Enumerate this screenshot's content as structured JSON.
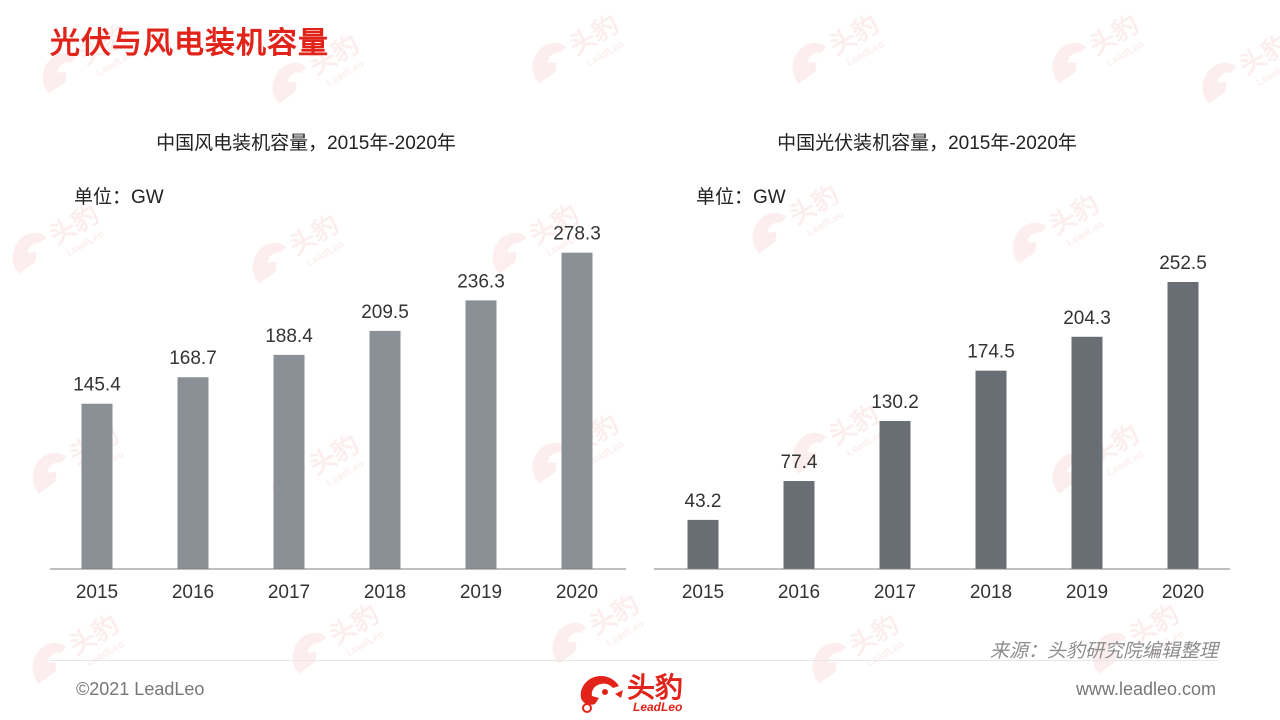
{
  "page": {
    "title": "光伏与风电装机容量",
    "source": "来源：头豹研究院编辑整理",
    "copyright": "©2021 LeadLeo",
    "website": "www.leadleo.com",
    "logo_cn": "头豹",
    "logo_en": "LeadLeo",
    "watermark_text": "头豹",
    "watermark_sub": "LeadLeo"
  },
  "chart_data": [
    {
      "type": "bar",
      "title": "中国风电装机容量，2015年-2020年",
      "unit": "单位：GW",
      "categories": [
        "2015",
        "2016",
        "2017",
        "2018",
        "2019",
        "2020"
      ],
      "values": [
        145.4,
        168.7,
        188.4,
        209.5,
        236.3,
        278.3
      ],
      "labels": [
        "145.4",
        "168.7",
        "188.4",
        "209.5",
        "236.3",
        "278.3"
      ],
      "color": "#8a9095",
      "ylim": [
        0,
        300
      ],
      "grid": false
    },
    {
      "type": "bar",
      "title": "中国光伏装机容量，2015年-2020年",
      "unit": "单位：GW",
      "categories": [
        "2015",
        "2016",
        "2017",
        "2018",
        "2019",
        "2020"
      ],
      "values": [
        43.2,
        77.4,
        130.2,
        174.5,
        204.3,
        252.5
      ],
      "labels": [
        "43.2",
        "77.4",
        "130.2",
        "174.5",
        "204.3",
        "252.5"
      ],
      "color": "#686e73",
      "ylim": [
        0,
        300
      ],
      "grid": false
    }
  ]
}
